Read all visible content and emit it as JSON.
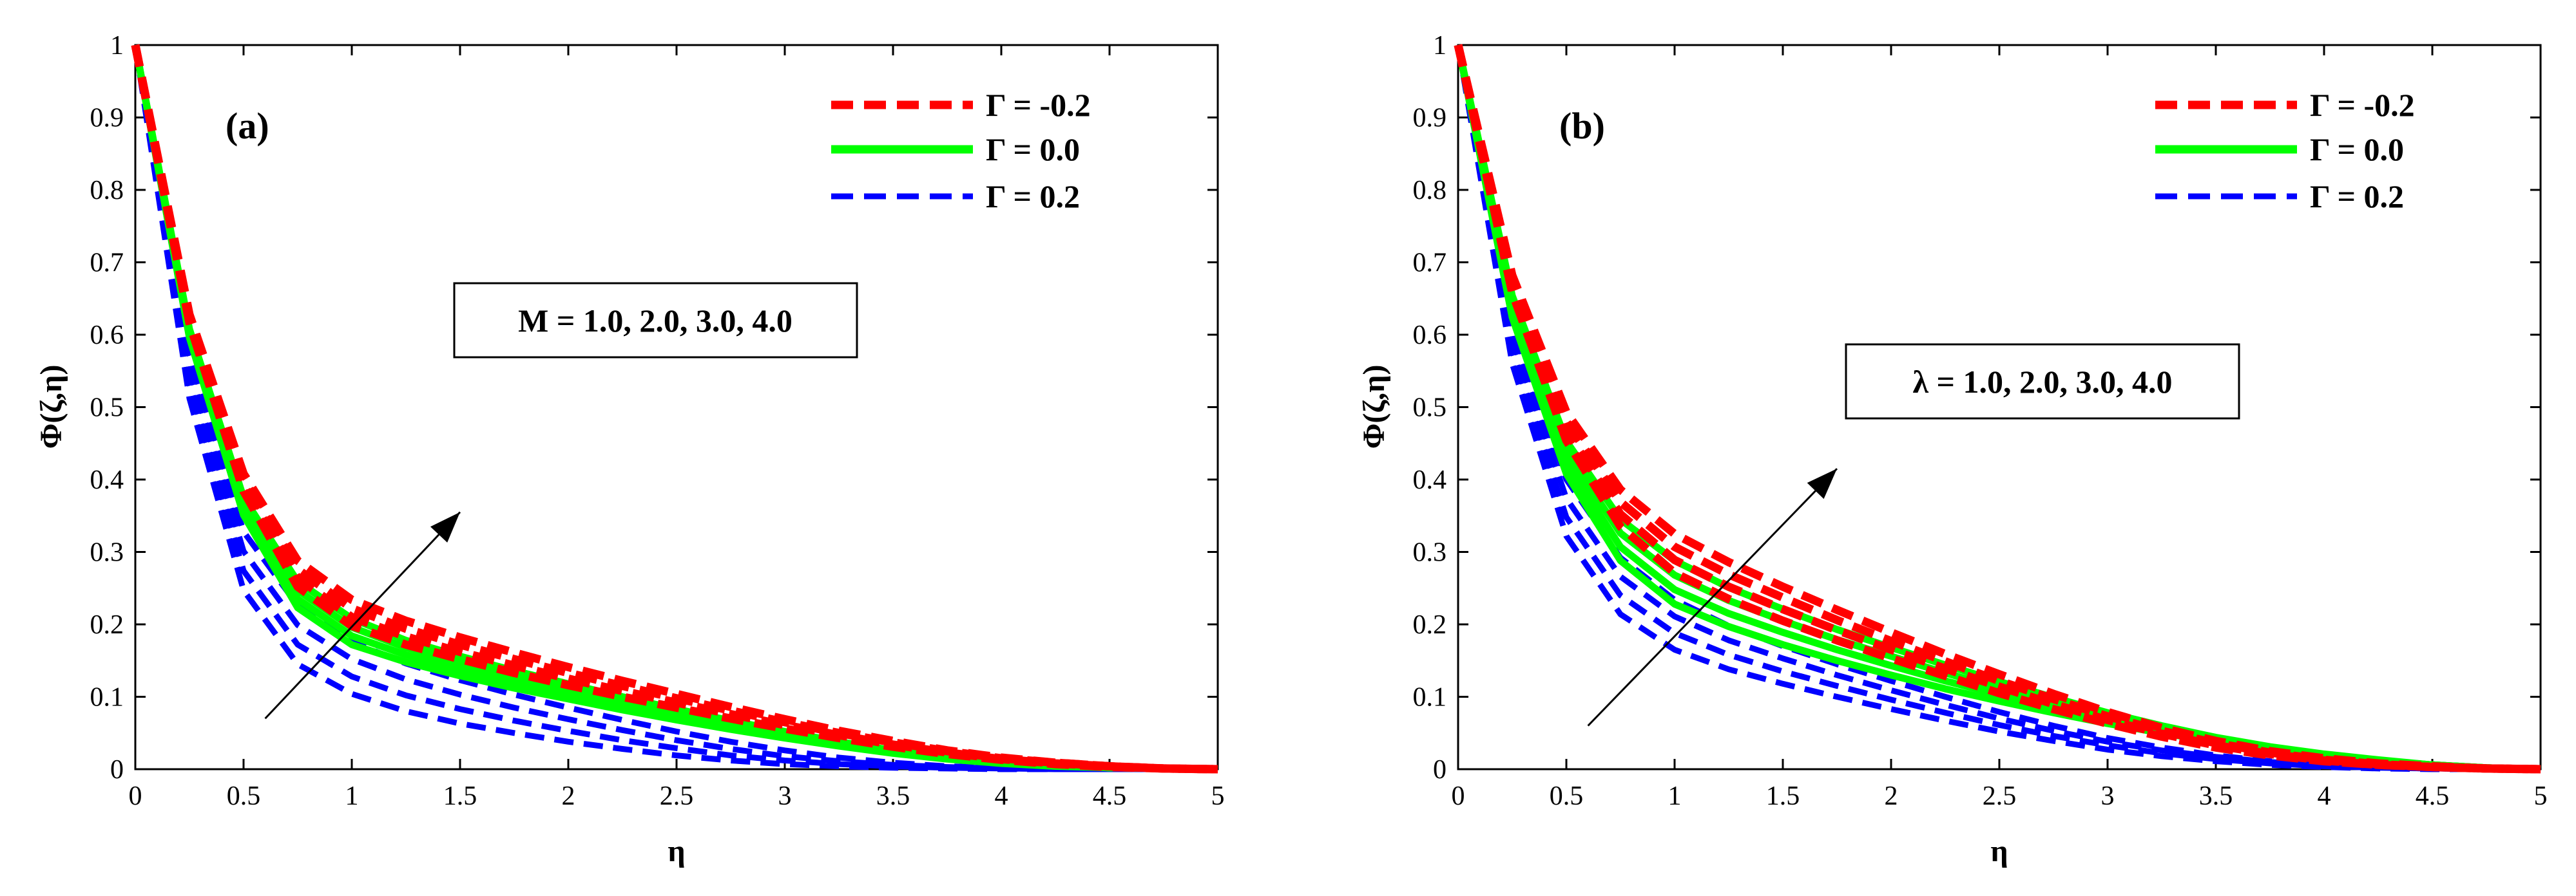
{
  "figure": {
    "background": "#ffffff",
    "axis_color": "#000000"
  },
  "legend_entries": [
    {
      "label": "Γ = -0.2",
      "gamma": -0.2,
      "color": "#ff0000",
      "style": "dashed"
    },
    {
      "label": "Γ = 0.0",
      "gamma": 0.0,
      "color": "#00ff00",
      "style": "solid"
    },
    {
      "label": "Γ = 0.2",
      "gamma": 0.2,
      "color": "#0000ff",
      "style": "dashed"
    }
  ],
  "chart_data": [
    {
      "type": "line",
      "panel_label": "(a)",
      "xlabel": "η",
      "ylabel": "Φ(ζ,η)",
      "xlim": [
        0,
        5
      ],
      "ylim": [
        0,
        1
      ],
      "xticks": [
        0,
        0.5,
        1,
        1.5,
        2,
        2.5,
        3,
        3.5,
        4,
        4.5,
        5
      ],
      "xtick_labels": [
        "0",
        "0.5",
        "1",
        "1.5",
        "2",
        "2.5",
        "3",
        "3.5",
        "4",
        "4.5",
        "5"
      ],
      "yticks": [
        0,
        0.1,
        0.2,
        0.3,
        0.4,
        0.5,
        0.6,
        0.7,
        0.8,
        0.9,
        1
      ],
      "ytick_labels": [
        "0",
        "0.1",
        "0.2",
        "0.3",
        "0.4",
        "0.5",
        "0.6",
        "0.7",
        "0.8",
        "0.9",
        "1"
      ],
      "annotation": "M = 1.0, 2.0, 3.0, 4.0",
      "arrow": {
        "from": [
          0.6,
          0.07
        ],
        "to": [
          1.5,
          0.355
        ]
      },
      "x": [
        0,
        0.25,
        0.5,
        0.75,
        1,
        1.25,
        1.5,
        1.75,
        2,
        2.25,
        2.5,
        2.75,
        3,
        3.25,
        3.5,
        3.75,
        4,
        4.25,
        4.5,
        4.75,
        5
      ],
      "series": [
        {
          "name": "Γ = -0.2, M = 1.0",
          "gamma": -0.2,
          "param": 1.0,
          "values": [
            1,
            0.616,
            0.384,
            0.252,
            0.198,
            0.172,
            0.152,
            0.133,
            0.116,
            0.1,
            0.085,
            0.07,
            0.056,
            0.043,
            0.031,
            0.021,
            0.013,
            0.007,
            0.003,
            0.001,
            0
          ]
        },
        {
          "name": "Γ = -0.2, M = 2.0",
          "gamma": -0.2,
          "param": 2.0,
          "values": [
            1,
            0.62,
            0.392,
            0.264,
            0.21,
            0.183,
            0.162,
            0.143,
            0.125,
            0.108,
            0.092,
            0.076,
            0.061,
            0.047,
            0.034,
            0.023,
            0.014,
            0.008,
            0.004,
            0.001,
            0
          ]
        },
        {
          "name": "Γ = -0.2, M = 3.0",
          "gamma": -0.2,
          "param": 3.0,
          "values": [
            1,
            0.624,
            0.4,
            0.276,
            0.222,
            0.194,
            0.172,
            0.152,
            0.133,
            0.115,
            0.098,
            0.081,
            0.065,
            0.05,
            0.037,
            0.025,
            0.015,
            0.009,
            0.004,
            0.001,
            0
          ]
        },
        {
          "name": "Γ = -0.2, M = 4.0",
          "gamma": -0.2,
          "param": 4.0,
          "values": [
            1,
            0.628,
            0.408,
            0.288,
            0.234,
            0.205,
            0.182,
            0.161,
            0.141,
            0.122,
            0.104,
            0.086,
            0.069,
            0.053,
            0.039,
            0.026,
            0.016,
            0.009,
            0.004,
            0.001,
            0
          ]
        },
        {
          "name": "Γ = 0.0, M = 1.0",
          "gamma": 0.0,
          "param": 1.0,
          "values": [
            1,
            0.596,
            0.351,
            0.223,
            0.172,
            0.148,
            0.129,
            0.112,
            0.097,
            0.082,
            0.068,
            0.055,
            0.043,
            0.032,
            0.022,
            0.014,
            0.008,
            0.004,
            0.002,
            0.001,
            0
          ]
        },
        {
          "name": "Γ = 0.0, M = 2.0",
          "gamma": 0.0,
          "param": 2.0,
          "values": [
            1,
            0.6,
            0.359,
            0.235,
            0.184,
            0.158,
            0.138,
            0.12,
            0.104,
            0.088,
            0.073,
            0.059,
            0.046,
            0.034,
            0.024,
            0.015,
            0.009,
            0.005,
            0.002,
            0.001,
            0
          ]
        },
        {
          "name": "Γ = 0.0, M = 3.0",
          "gamma": 0.0,
          "param": 3.0,
          "values": [
            1,
            0.604,
            0.367,
            0.247,
            0.196,
            0.168,
            0.147,
            0.128,
            0.111,
            0.094,
            0.078,
            0.063,
            0.049,
            0.036,
            0.025,
            0.016,
            0.009,
            0.005,
            0.002,
            0.001,
            0
          ]
        },
        {
          "name": "Γ = 0.0, M = 4.0",
          "gamma": 0.0,
          "param": 4.0,
          "values": [
            1,
            0.608,
            0.375,
            0.259,
            0.208,
            0.178,
            0.156,
            0.136,
            0.118,
            0.1,
            0.083,
            0.067,
            0.052,
            0.038,
            0.026,
            0.017,
            0.01,
            0.005,
            0.002,
            0.001,
            0
          ]
        },
        {
          "name": "Γ = 0.2, M = 1.0",
          "gamma": 0.2,
          "param": 1.0,
          "values": [
            1,
            0.512,
            0.247,
            0.145,
            0.104,
            0.08,
            0.063,
            0.05,
            0.038,
            0.028,
            0.019,
            0.012,
            0.007,
            0.004,
            0.002,
            0.001,
            0,
            0,
            0,
            0,
            0
          ]
        },
        {
          "name": "Γ = 0.2, M = 2.0",
          "gamma": 0.2,
          "param": 2.0,
          "values": [
            1,
            0.532,
            0.274,
            0.172,
            0.128,
            0.102,
            0.083,
            0.067,
            0.053,
            0.04,
            0.029,
            0.019,
            0.012,
            0.007,
            0.004,
            0.002,
            0.001,
            0,
            0,
            0,
            0
          ]
        },
        {
          "name": "Γ = 0.2, M = 3.0",
          "gamma": 0.2,
          "param": 3.0,
          "values": [
            1,
            0.552,
            0.301,
            0.199,
            0.152,
            0.124,
            0.103,
            0.085,
            0.069,
            0.054,
            0.04,
            0.028,
            0.018,
            0.011,
            0.006,
            0.003,
            0.001,
            0,
            0,
            0,
            0
          ]
        },
        {
          "name": "Γ = 0.2, M = 4.0",
          "gamma": 0.2,
          "param": 4.0,
          "values": [
            1,
            0.572,
            0.328,
            0.226,
            0.176,
            0.146,
            0.123,
            0.103,
            0.085,
            0.068,
            0.052,
            0.038,
            0.026,
            0.016,
            0.009,
            0.004,
            0.002,
            0.001,
            0,
            0,
            0
          ]
        }
      ]
    },
    {
      "type": "line",
      "panel_label": "(b)",
      "xlabel": "η",
      "ylabel": "Φ(ζ,η)",
      "xlim": [
        0,
        5
      ],
      "ylim": [
        0,
        1
      ],
      "xticks": [
        0,
        0.5,
        1,
        1.5,
        2,
        2.5,
        3,
        3.5,
        4,
        4.5,
        5
      ],
      "xtick_labels": [
        "0",
        "0.5",
        "1",
        "1.5",
        "2",
        "2.5",
        "3",
        "3.5",
        "4",
        "4.5",
        "5"
      ],
      "yticks": [
        0,
        0.1,
        0.2,
        0.3,
        0.4,
        0.5,
        0.6,
        0.7,
        0.8,
        0.9,
        1
      ],
      "ytick_labels": [
        "0",
        "0.1",
        "0.2",
        "0.3",
        "0.4",
        "0.5",
        "0.6",
        "0.7",
        "0.8",
        "0.9",
        "1"
      ],
      "annotation": "λ = 1.0, 2.0, 3.0, 4.0",
      "arrow": {
        "from": [
          0.6,
          0.06
        ],
        "to": [
          1.75,
          0.415
        ]
      },
      "x": [
        0,
        0.25,
        0.5,
        0.75,
        1,
        1.25,
        1.5,
        1.75,
        2,
        2.25,
        2.5,
        2.75,
        3,
        3.25,
        3.5,
        3.75,
        4,
        4.25,
        4.5,
        4.75,
        5
      ],
      "series": [
        {
          "name": "Γ = -0.2, λ = 1.0",
          "gamma": -0.2,
          "param": 1.0,
          "values": [
            1,
            0.658,
            0.454,
            0.335,
            0.271,
            0.235,
            0.205,
            0.178,
            0.153,
            0.129,
            0.105,
            0.083,
            0.063,
            0.045,
            0.03,
            0.019,
            0.011,
            0.006,
            0.003,
            0.001,
            0
          ]
        },
        {
          "name": "Γ = -0.2, λ = 2.0",
          "gamma": -0.2,
          "param": 2.0,
          "values": [
            1,
            0.666,
            0.467,
            0.352,
            0.289,
            0.252,
            0.221,
            0.192,
            0.165,
            0.139,
            0.114,
            0.09,
            0.068,
            0.049,
            0.033,
            0.021,
            0.012,
            0.006,
            0.003,
            0.001,
            0
          ]
        },
        {
          "name": "Γ = -0.2, λ = 3.0",
          "gamma": -0.2,
          "param": 3.0,
          "values": [
            1,
            0.674,
            0.48,
            0.369,
            0.307,
            0.269,
            0.237,
            0.206,
            0.177,
            0.149,
            0.122,
            0.097,
            0.073,
            0.053,
            0.036,
            0.023,
            0.013,
            0.007,
            0.003,
            0.001,
            0
          ]
        },
        {
          "name": "Γ = -0.2, λ = 4.0",
          "gamma": -0.2,
          "param": 4.0,
          "values": [
            1,
            0.682,
            0.493,
            0.386,
            0.325,
            0.286,
            0.252,
            0.22,
            0.189,
            0.159,
            0.131,
            0.104,
            0.079,
            0.057,
            0.039,
            0.025,
            0.015,
            0.008,
            0.004,
            0.001,
            0
          ]
        },
        {
          "name": "Γ = 0.0, λ = 1.0",
          "gamma": 0.0,
          "param": 1.0,
          "values": [
            1,
            0.624,
            0.408,
            0.288,
            0.228,
            0.197,
            0.172,
            0.15,
            0.13,
            0.111,
            0.094,
            0.078,
            0.063,
            0.05,
            0.038,
            0.028,
            0.019,
            0.012,
            0.006,
            0.002,
            0
          ]
        },
        {
          "name": "Γ = 0.0, λ = 2.0",
          "gamma": 0.0,
          "param": 2.0,
          "values": [
            1,
            0.634,
            0.423,
            0.307,
            0.248,
            0.215,
            0.189,
            0.165,
            0.143,
            0.122,
            0.103,
            0.085,
            0.068,
            0.053,
            0.04,
            0.029,
            0.02,
            0.012,
            0.006,
            0.002,
            0
          ]
        },
        {
          "name": "Γ = 0.0, λ = 3.0",
          "gamma": 0.0,
          "param": 3.0,
          "values": [
            1,
            0.644,
            0.438,
            0.326,
            0.268,
            0.233,
            0.205,
            0.179,
            0.156,
            0.133,
            0.112,
            0.092,
            0.073,
            0.056,
            0.042,
            0.03,
            0.02,
            0.012,
            0.006,
            0.002,
            0
          ]
        },
        {
          "name": "Γ = 0.0, λ = 4.0",
          "gamma": 0.0,
          "param": 4.0,
          "values": [
            1,
            0.654,
            0.453,
            0.345,
            0.288,
            0.251,
            0.221,
            0.193,
            0.168,
            0.144,
            0.121,
            0.099,
            0.078,
            0.06,
            0.044,
            0.031,
            0.021,
            0.013,
            0.006,
            0.002,
            0
          ]
        },
        {
          "name": "Γ = 0.2, λ = 1.0",
          "gamma": 0.2,
          "param": 1.0,
          "values": [
            1,
            0.56,
            0.322,
            0.214,
            0.165,
            0.138,
            0.118,
            0.1,
            0.083,
            0.067,
            0.052,
            0.039,
            0.027,
            0.018,
            0.011,
            0.006,
            0.003,
            0.001,
            0,
            0,
            0
          ]
        },
        {
          "name": "Γ = 0.2, λ = 2.0",
          "gamma": 0.2,
          "param": 2.0,
          "values": [
            1,
            0.578,
            0.348,
            0.24,
            0.188,
            0.158,
            0.135,
            0.115,
            0.096,
            0.078,
            0.061,
            0.046,
            0.033,
            0.022,
            0.014,
            0.008,
            0.004,
            0.002,
            0.001,
            0,
            0
          ]
        },
        {
          "name": "Γ = 0.2, λ = 3.0",
          "gamma": 0.2,
          "param": 3.0,
          "values": [
            1,
            0.596,
            0.374,
            0.266,
            0.211,
            0.178,
            0.153,
            0.13,
            0.109,
            0.089,
            0.07,
            0.053,
            0.038,
            0.026,
            0.017,
            0.01,
            0.005,
            0.002,
            0.001,
            0,
            0
          ]
        },
        {
          "name": "Γ = 0.2, λ = 4.0",
          "gamma": 0.2,
          "param": 4.0,
          "values": [
            1,
            0.614,
            0.4,
            0.292,
            0.234,
            0.198,
            0.17,
            0.145,
            0.122,
            0.1,
            0.079,
            0.06,
            0.043,
            0.03,
            0.019,
            0.011,
            0.006,
            0.003,
            0.001,
            0,
            0
          ]
        }
      ]
    }
  ]
}
